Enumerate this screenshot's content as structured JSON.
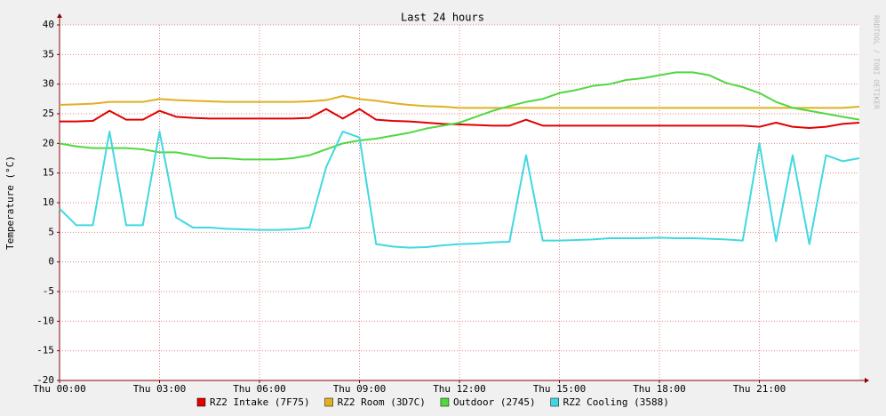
{
  "chart_data": {
    "type": "line",
    "title": "Last 24 hours",
    "y_label": "Temperature (°C)",
    "side_label": "RRDTOOL / TOBI OETIKER",
    "x": [
      0,
      0.5,
      1,
      1.5,
      2,
      2.5,
      3,
      3.5,
      4,
      4.5,
      5,
      5.5,
      6,
      6.5,
      7,
      7.5,
      8,
      8.5,
      9,
      9.5,
      10,
      10.5,
      11,
      11.5,
      12,
      12.5,
      13,
      13.5,
      14,
      14.5,
      15,
      15.5,
      16,
      16.5,
      17,
      17.5,
      18,
      18.5,
      19,
      19.5,
      20,
      20.5,
      21,
      21.5,
      22,
      22.5,
      23,
      23.5,
      24
    ],
    "xlim": [
      0,
      24
    ],
    "xticks": [
      {
        "value": 0,
        "label": "Thu 00:00"
      },
      {
        "value": 3,
        "label": "Thu 03:00"
      },
      {
        "value": 6,
        "label": "Thu 06:00"
      },
      {
        "value": 9,
        "label": "Thu 09:00"
      },
      {
        "value": 12,
        "label": "Thu 12:00"
      },
      {
        "value": 15,
        "label": "Thu 15:00"
      },
      {
        "value": 18,
        "label": "Thu 18:00"
      },
      {
        "value": 21,
        "label": "Thu 21:00"
      }
    ],
    "ylim": [
      -20,
      40
    ],
    "yticks": [
      -20,
      -15,
      -10,
      -5,
      0,
      5,
      10,
      15,
      20,
      25,
      30,
      35,
      40
    ],
    "grid": true,
    "series": [
      {
        "name": "RZ2 Intake (7F75)",
        "color": "#e00000",
        "values": [
          23.7,
          23.7,
          23.8,
          25.5,
          24,
          24,
          25.5,
          24.5,
          24.3,
          24.2,
          24.2,
          24.2,
          24.2,
          24.2,
          24.2,
          24.3,
          25.8,
          24.2,
          25.8,
          24,
          23.8,
          23.7,
          23.5,
          23.3,
          23.2,
          23.1,
          23,
          23,
          24,
          23,
          23,
          23,
          23,
          23,
          23,
          23,
          23,
          23,
          23,
          23,
          23,
          23,
          22.8,
          23.5,
          22.8,
          22.6,
          22.8,
          23.3,
          23.5
        ]
      },
      {
        "name": "RZ2 Room (3D7C)",
        "color": "#e0b020",
        "values": [
          26.5,
          26.6,
          26.7,
          27,
          27,
          27,
          27.5,
          27.3,
          27.2,
          27.1,
          27,
          27,
          27,
          27,
          27,
          27.1,
          27.3,
          28,
          27.5,
          27.2,
          26.8,
          26.5,
          26.3,
          26.2,
          26,
          26,
          26,
          26,
          26,
          26,
          26,
          26,
          26,
          26,
          26,
          26,
          26,
          26,
          26,
          26,
          26,
          26,
          26,
          26,
          26,
          26,
          26,
          26,
          26.2
        ]
      },
      {
        "name": "Outdoor (2745)",
        "color": "#50d840",
        "values": [
          20,
          19.5,
          19.2,
          19.2,
          19.2,
          19,
          18.5,
          18.5,
          18,
          17.5,
          17.5,
          17.3,
          17.3,
          17.3,
          17.5,
          18,
          19,
          20,
          20.5,
          20.8,
          21.3,
          21.8,
          22.5,
          23,
          23.5,
          24.5,
          25.5,
          26.3,
          27,
          27.5,
          28.5,
          29,
          29.7,
          30,
          30.7,
          31,
          31.5,
          32,
          32,
          31.5,
          30.2,
          29.5,
          28.5,
          27,
          26,
          25.5,
          25,
          24.5,
          24
        ]
      },
      {
        "name": "RZ2 Cooling (3588)",
        "color": "#40d8e0",
        "values": [
          9,
          6.2,
          6.2,
          22,
          6.2,
          6.2,
          22,
          7.5,
          5.8,
          5.8,
          5.6,
          5.5,
          5.4,
          5.4,
          5.5,
          5.8,
          16,
          22,
          21,
          3,
          2.6,
          2.4,
          2.5,
          2.8,
          3,
          3.1,
          3.3,
          3.4,
          18,
          3.6,
          3.6,
          3.7,
          3.8,
          4,
          4,
          4,
          4.1,
          4,
          4,
          3.9,
          3.8,
          3.6,
          20,
          3.5,
          18,
          3,
          18,
          17,
          17.5
        ]
      }
    ]
  }
}
